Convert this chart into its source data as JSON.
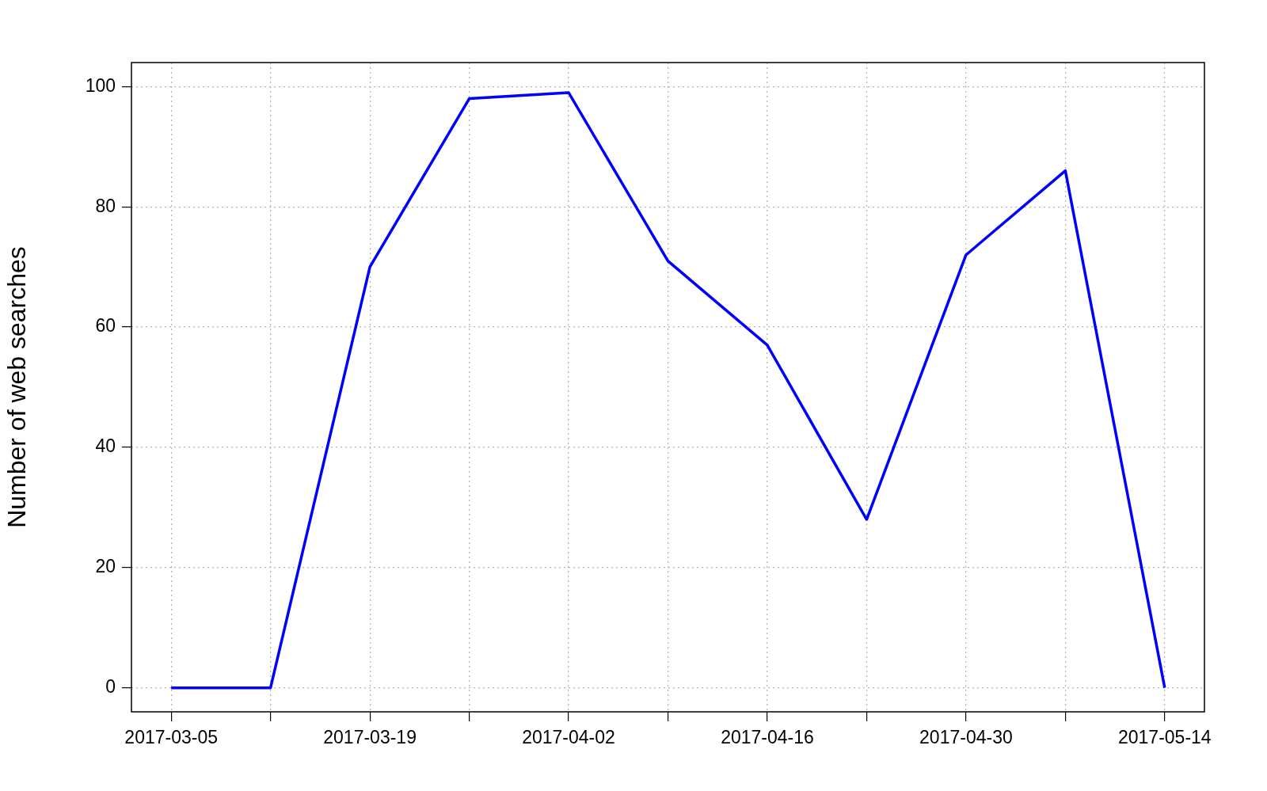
{
  "chart_data": {
    "type": "line",
    "ylabel": "Number of web searches",
    "x": [
      "2017-03-05",
      "2017-03-12",
      "2017-03-19",
      "2017-03-26",
      "2017-04-02",
      "2017-04-09",
      "2017-04-16",
      "2017-04-23",
      "2017-04-30",
      "2017-05-07",
      "2017-05-14"
    ],
    "series": [
      {
        "color": "#0000ff",
        "values": [
          0,
          0,
          70,
          98,
          99,
          71,
          57,
          28,
          72,
          86,
          0
        ]
      }
    ],
    "xlim": [
      "2017-03-02T04:48",
      "2017-05-16T19:12"
    ],
    "xticks": [
      "2017-03-05",
      {
        "value": "2017-03-12",
        "label": null
      },
      "2017-03-19",
      {
        "value": "2017-03-26",
        "label": null
      },
      "2017-04-02",
      {
        "value": "2017-04-09",
        "label": null
      },
      "2017-04-16",
      {
        "value": "2017-04-23",
        "label": null
      },
      "2017-04-30",
      {
        "value": "2017-05-07",
        "label": null
      },
      "2017-05-14"
    ],
    "ylim": [
      -4,
      104
    ],
    "yticks": [
      0,
      20,
      40,
      60,
      80,
      100
    ],
    "grid": true,
    "legend": false
  }
}
